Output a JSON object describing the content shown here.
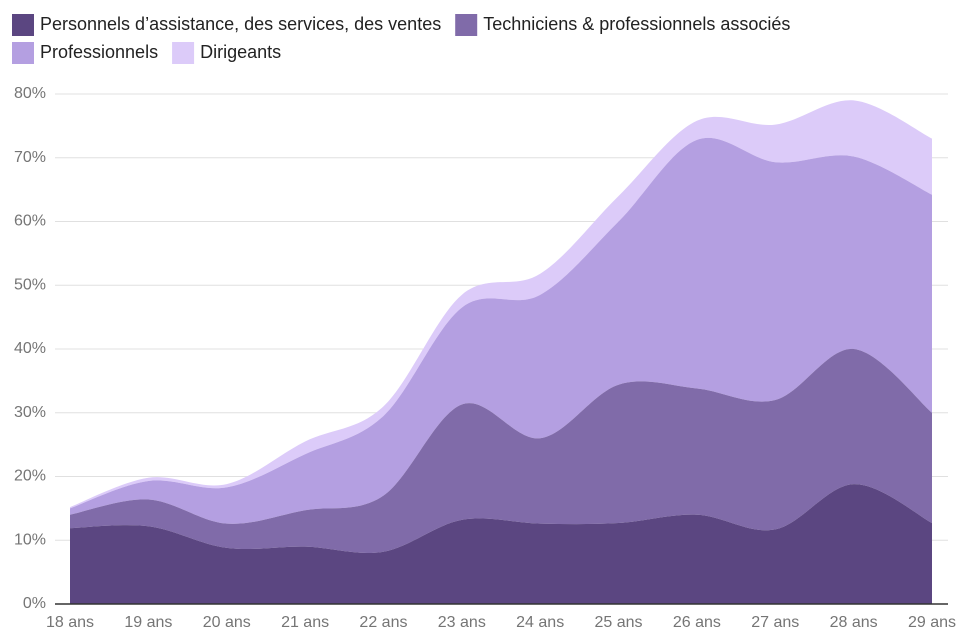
{
  "chart_data": {
    "type": "stacked_area",
    "categories": [
      "18 ans",
      "19 ans",
      "20 ans",
      "21 ans",
      "22 ans",
      "23 ans",
      "24 ans",
      "25 ans",
      "26 ans",
      "27 ans",
      "28 ans",
      "29 ans"
    ],
    "series": [
      {
        "name": "Personnels d’assistance, des services, des ventes",
        "color": "#5b4681",
        "values": [
          11.9,
          12.2,
          8.8,
          9.0,
          8.2,
          13.2,
          12.6,
          12.7,
          14.0,
          11.7,
          18.8,
          12.7
        ]
      },
      {
        "name": "Techniciens & professionnels associés",
        "color": "#806ba9",
        "values": [
          2.1,
          4.2,
          3.8,
          5.7,
          8.8,
          18.1,
          13.4,
          21.7,
          19.8,
          20.3,
          21.2,
          17.3
        ]
      },
      {
        "name": "Professionnels",
        "color": "#b49fe1",
        "values": [
          1.0,
          2.9,
          5.7,
          8.8,
          12.5,
          15.2,
          22.5,
          25.6,
          39.0,
          37.3,
          30.2,
          34.2
        ]
      },
      {
        "name": "Dirigeants",
        "color": "#dccbf9",
        "values": [
          0.2,
          0.5,
          0.5,
          2.0,
          1.5,
          2.0,
          3.3,
          4.0,
          3.0,
          5.9,
          8.8,
          8.8
        ]
      }
    ],
    "ylim": [
      0,
      80
    ],
    "yticks": [
      {
        "value": 0,
        "label": "0%"
      },
      {
        "value": 10,
        "label": "10%"
      },
      {
        "value": 20,
        "label": "20%"
      },
      {
        "value": 30,
        "label": "30%"
      },
      {
        "value": 40,
        "label": "40%"
      },
      {
        "value": 50,
        "label": "50%"
      },
      {
        "value": 60,
        "label": "60%"
      },
      {
        "value": 70,
        "label": "70%"
      },
      {
        "value": 80,
        "label": "80%"
      }
    ],
    "grid": true,
    "legend": "top"
  }
}
